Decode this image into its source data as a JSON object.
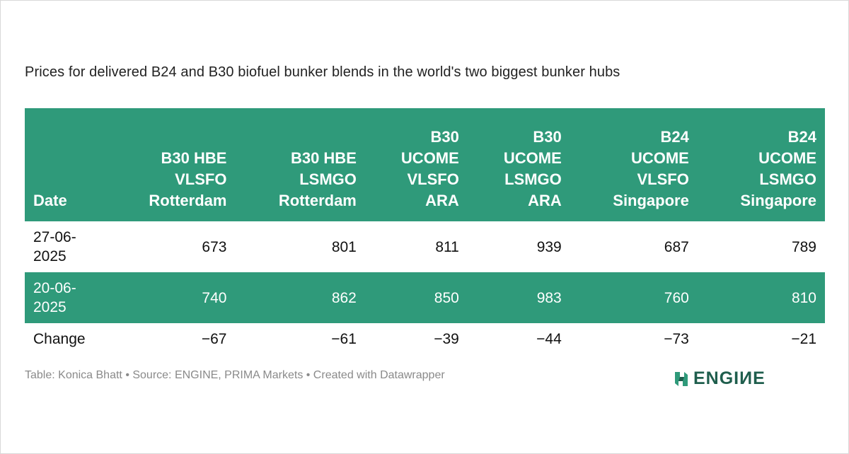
{
  "title": "Prices for delivered B24 and B30 biofuel bunker blends in the world's two biggest bunker hubs",
  "chart_data": {
    "type": "table",
    "columns": [
      [
        "Date"
      ],
      [
        "B30 HBE",
        "VLSFO",
        "Rotterdam"
      ],
      [
        "B30 HBE",
        "LSMGO",
        "Rotterdam"
      ],
      [
        "B30",
        "UCOME",
        "VLSFO",
        "ARA"
      ],
      [
        "B30",
        "UCOME",
        "LSMGO",
        "ARA"
      ],
      [
        "B24",
        "UCOME",
        "VLSFO",
        "Singapore"
      ],
      [
        "B24",
        "UCOME",
        "LSMGO",
        "Singapore"
      ]
    ],
    "rows": [
      {
        "date": [
          "27-06-",
          "2025"
        ],
        "values": [
          "673",
          "801",
          "811",
          "939",
          "687",
          "789"
        ]
      },
      {
        "date": [
          "20-06-",
          "2025"
        ],
        "values": [
          "740",
          "862",
          "850",
          "983",
          "760",
          "810"
        ]
      },
      {
        "date": [
          "Change"
        ],
        "values": [
          "−67",
          "−61",
          "−39",
          "−44",
          "−73",
          "−21"
        ]
      }
    ]
  },
  "footer": "Table: Konica Bhatt • Source: ENGINE, PRIMA Markets • Created with Datawrapper",
  "logo": {
    "text": "ENGIИE",
    "icon": "engine-logo-icon",
    "color": "#1f5e4d"
  },
  "colors": {
    "header_bg": "#2f9a7a",
    "band_bg": "#2f9a7a",
    "text": "#222222",
    "footer_text": "#8a8a8a"
  }
}
